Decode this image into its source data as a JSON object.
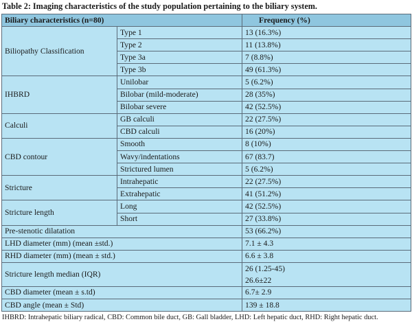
{
  "caption": "Table 2: Imaging characteristics of the study population pertaining to the biliary system.",
  "header": {
    "characteristic": "Biliary characteristics (n=80)",
    "frequency": "Frequency (%)"
  },
  "groups": [
    {
      "name": "Biliopathy Classification",
      "rows": [
        {
          "sub": "Type 1",
          "freq": "13 (16.3%)"
        },
        {
          "sub": "Type 2",
          "freq": "11 (13.8%)"
        },
        {
          "sub": "Type 3a",
          "freq": "7 (8.8%)"
        },
        {
          "sub": "Type 3b",
          "freq": "49 (61.3%)"
        }
      ]
    },
    {
      "name": "IHBRD",
      "rows": [
        {
          "sub": "Unilobar",
          "freq": "5 (6.2%)"
        },
        {
          "sub": "Bilobar (mild-moderate)",
          "freq": "28 (35%)"
        },
        {
          "sub": "Bilobar severe",
          "freq": "42 (52.5%)"
        }
      ]
    },
    {
      "name": "Calculi",
      "rows": [
        {
          "sub": "GB calculi",
          "freq": "22 (27.5%)"
        },
        {
          "sub": "CBD calculi",
          "freq": "16 (20%)"
        }
      ]
    },
    {
      "name": "CBD contour",
      "rows": [
        {
          "sub": "Smooth",
          "freq": "8 (10%)"
        },
        {
          "sub": "Wavy/indentations",
          "freq": "67 (83.7)"
        },
        {
          "sub": "Strictured lumen",
          "freq": "5 (6.2%)"
        }
      ]
    },
    {
      "name": "Stricture",
      "rows": [
        {
          "sub": "Intrahepatic",
          "freq": "22 (27.5%)"
        },
        {
          "sub": "Extrahepatic",
          "freq": "41 (51.2%)"
        }
      ]
    },
    {
      "name": "Stricture length",
      "rows": [
        {
          "sub": "Long",
          "freq": "42 (52.5%)"
        },
        {
          "sub": "Short",
          "freq": "27 (33.8%)"
        }
      ]
    }
  ],
  "single_rows": [
    {
      "label": "Pre-stenotic dilatation",
      "freq": "53 (66.2%)"
    },
    {
      "label": "LHD diameter (mm) (mean ±std.)",
      "freq": "7.1 ± 4.3"
    },
    {
      "label": "RHD diameter (mm) (mean ± std.)",
      "freq": "6.6 ± 3.8"
    }
  ],
  "stacked_row": {
    "label": "Stricture length median (IQR)",
    "values": [
      "26 (1.25-45)",
      "26.6±22"
    ]
  },
  "tail_rows": [
    {
      "label": "CBD diameter (mean ± s.td)",
      "freq": "6.7± 2.9"
    },
    {
      "label": "CBD angle (mean ± Std)",
      "freq": "139 ± 18.8"
    }
  ],
  "footnote": "IHBRD: Intrahepatic biliary radical, CBD: Common bile duct, GB: Gall bladder, LHD: Left hepatic duct, RHD: Right hepatic duct."
}
